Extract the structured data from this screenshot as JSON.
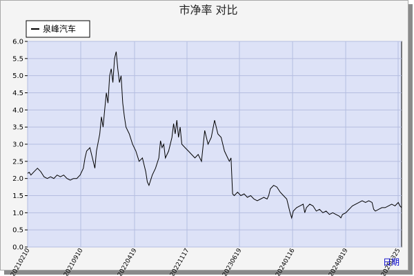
{
  "chart_data": {
    "type": "line",
    "title": "市净率  对比",
    "legend": {
      "placement": "top-left",
      "entries": [
        "泉峰汽车"
      ]
    },
    "xlabel": "日期",
    "ylabel": "",
    "ylim": [
      0.0,
      6.0
    ],
    "yticks": [
      "0.0",
      "0.5",
      "1.0",
      "1.5",
      "2.0",
      "2.5",
      "3.0",
      "3.5",
      "4.0",
      "4.5",
      "5.0",
      "5.5",
      "6.0"
    ],
    "grid": true,
    "xticks": [
      "20210210",
      "20210910",
      "20220419",
      "20221117",
      "20230619",
      "20240116",
      "20240819",
      "20250325"
    ],
    "series": [
      {
        "name": "泉峰汽车",
        "color": "#000000",
        "points": [
          [
            0,
            2.15
          ],
          [
            0.05,
            2.18
          ],
          [
            0.1,
            2.1
          ],
          [
            0.2,
            2.2
          ],
          [
            0.3,
            2.3
          ],
          [
            0.4,
            2.2
          ],
          [
            0.5,
            2.05
          ],
          [
            0.6,
            2.0
          ],
          [
            0.7,
            2.05
          ],
          [
            0.8,
            2.0
          ],
          [
            0.9,
            2.1
          ],
          [
            1.0,
            2.05
          ],
          [
            1.1,
            2.1
          ],
          [
            1.2,
            2.0
          ],
          [
            1.3,
            1.95
          ],
          [
            1.4,
            2.0
          ],
          [
            1.5,
            2.0
          ],
          [
            1.6,
            2.1
          ],
          [
            1.7,
            2.3
          ],
          [
            1.75,
            2.6
          ],
          [
            1.8,
            2.8
          ],
          [
            1.9,
            2.9
          ],
          [
            1.95,
            2.7
          ],
          [
            2.0,
            2.5
          ],
          [
            2.05,
            2.3
          ],
          [
            2.1,
            2.8
          ],
          [
            2.2,
            3.3
          ],
          [
            2.25,
            3.8
          ],
          [
            2.3,
            3.5
          ],
          [
            2.35,
            4.0
          ],
          [
            2.4,
            4.5
          ],
          [
            2.45,
            4.2
          ],
          [
            2.5,
            5.0
          ],
          [
            2.55,
            5.2
          ],
          [
            2.6,
            4.8
          ],
          [
            2.65,
            5.5
          ],
          [
            2.7,
            5.7
          ],
          [
            2.75,
            5.2
          ],
          [
            2.8,
            4.8
          ],
          [
            2.85,
            5.0
          ],
          [
            2.9,
            4.2
          ],
          [
            2.95,
            3.8
          ],
          [
            3.0,
            3.5
          ],
          [
            3.1,
            3.3
          ],
          [
            3.2,
            3.0
          ],
          [
            3.3,
            2.8
          ],
          [
            3.4,
            2.5
          ],
          [
            3.5,
            2.6
          ],
          [
            3.6,
            2.2
          ],
          [
            3.65,
            1.9
          ],
          [
            3.7,
            1.8
          ],
          [
            3.8,
            2.1
          ],
          [
            3.9,
            2.3
          ],
          [
            4.0,
            2.6
          ],
          [
            4.05,
            3.1
          ],
          [
            4.1,
            2.9
          ],
          [
            4.15,
            3.0
          ],
          [
            4.2,
            2.6
          ],
          [
            4.3,
            2.8
          ],
          [
            4.4,
            3.2
          ],
          [
            4.45,
            3.6
          ],
          [
            4.5,
            3.3
          ],
          [
            4.55,
            3.7
          ],
          [
            4.6,
            3.2
          ],
          [
            4.65,
            3.5
          ],
          [
            4.7,
            3.0
          ],
          [
            4.8,
            2.9
          ],
          [
            4.9,
            2.8
          ],
          [
            5.0,
            2.7
          ],
          [
            5.1,
            2.6
          ],
          [
            5.2,
            2.7
          ],
          [
            5.3,
            2.5
          ],
          [
            5.4,
            3.4
          ],
          [
            5.5,
            3.0
          ],
          [
            5.6,
            3.2
          ],
          [
            5.7,
            3.7
          ],
          [
            5.75,
            3.5
          ],
          [
            5.8,
            3.3
          ],
          [
            5.9,
            3.2
          ],
          [
            6.0,
            2.8
          ],
          [
            6.1,
            2.6
          ],
          [
            6.15,
            2.5
          ],
          [
            6.2,
            2.6
          ],
          [
            6.25,
            1.55
          ],
          [
            6.3,
            1.5
          ],
          [
            6.4,
            1.6
          ],
          [
            6.5,
            1.5
          ],
          [
            6.6,
            1.55
          ],
          [
            6.7,
            1.45
          ],
          [
            6.8,
            1.5
          ],
          [
            6.9,
            1.4
          ],
          [
            7.0,
            1.35
          ],
          [
            7.1,
            1.4
          ],
          [
            7.2,
            1.45
          ],
          [
            7.3,
            1.4
          ],
          [
            7.35,
            1.5
          ],
          [
            7.4,
            1.7
          ],
          [
            7.5,
            1.8
          ],
          [
            7.6,
            1.75
          ],
          [
            7.7,
            1.6
          ],
          [
            7.8,
            1.5
          ],
          [
            7.9,
            1.4
          ],
          [
            7.95,
            1.2
          ],
          [
            8.0,
            1.0
          ],
          [
            8.05,
            0.85
          ],
          [
            8.1,
            1.05
          ],
          [
            8.2,
            1.15
          ],
          [
            8.3,
            1.2
          ],
          [
            8.4,
            1.25
          ],
          [
            8.45,
            1.0
          ],
          [
            8.5,
            1.15
          ],
          [
            8.6,
            1.25
          ],
          [
            8.7,
            1.2
          ],
          [
            8.8,
            1.05
          ],
          [
            8.9,
            1.1
          ],
          [
            9.0,
            1.0
          ],
          [
            9.1,
            1.05
          ],
          [
            9.2,
            0.95
          ],
          [
            9.3,
            1.0
          ],
          [
            9.4,
            0.95
          ],
          [
            9.5,
            0.9
          ],
          [
            9.55,
            0.85
          ],
          [
            9.6,
            0.95
          ],
          [
            9.7,
            1.0
          ],
          [
            9.8,
            1.1
          ],
          [
            9.9,
            1.2
          ],
          [
            10.0,
            1.25
          ],
          [
            10.1,
            1.3
          ],
          [
            10.2,
            1.35
          ],
          [
            10.3,
            1.3
          ],
          [
            10.4,
            1.35
          ],
          [
            10.5,
            1.3
          ],
          [
            10.55,
            1.1
          ],
          [
            10.6,
            1.05
          ],
          [
            10.7,
            1.1
          ],
          [
            10.8,
            1.15
          ],
          [
            10.9,
            1.15
          ],
          [
            11.0,
            1.2
          ],
          [
            11.1,
            1.25
          ],
          [
            11.2,
            1.2
          ],
          [
            11.3,
            1.3
          ],
          [
            11.35,
            1.2
          ],
          [
            11.4,
            1.15
          ]
        ]
      }
    ]
  }
}
